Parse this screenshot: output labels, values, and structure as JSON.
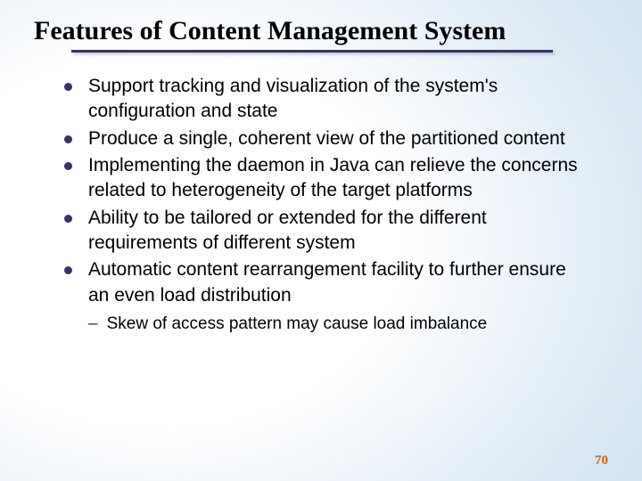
{
  "title": "Features of Content Management System",
  "underline_color": "#333366",
  "underline_width": 540,
  "bullets": [
    "Support tracking and visualization of the system's configuration and state",
    "Produce a single, coherent view of the partitioned content",
    "Implementing the daemon in Java can relieve the concerns related to heterogeneity of the target platforms",
    "Ability to be tailored or extended for the different requirements of different system",
    "Automatic content rearrangement  facility to further ensure an even load distribution"
  ],
  "sub_bullets": [
    "Skew of access pattern may cause load imbalance"
  ],
  "page_number": "70",
  "colors": {
    "title": "#000000",
    "bullet_dot": "#333366",
    "body_text": "#000000",
    "page_num": "#cc6600",
    "bg_inner": "#ffffff",
    "bg_outer": "#b8d4ec"
  },
  "fonts": {
    "title_family": "Times New Roman",
    "title_size_pt": 22,
    "title_weight": "bold",
    "body_family": "Arial",
    "body_size_pt": 16,
    "sub_size_pt": 14
  }
}
